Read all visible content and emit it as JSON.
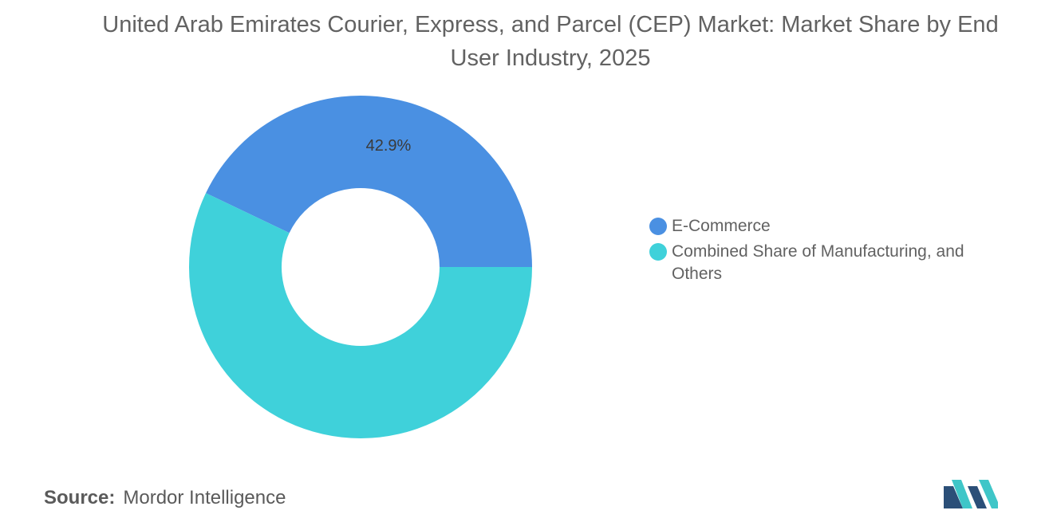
{
  "title": "United Arab Emirates Courier, Express, and Parcel (CEP) Market: Market Share by End User Industry, 2025",
  "chart_data": {
    "type": "pie",
    "style": "donut",
    "slices": [
      {
        "label": "E-Commerce",
        "value": 42.9,
        "color": "#4a90e2",
        "data_label": "42.9%"
      },
      {
        "label": "Combined Share of Manufacturing, and Others",
        "value": 57.1,
        "color": "#3fd1da",
        "data_label": ""
      }
    ],
    "legend_position": "right"
  },
  "source": {
    "label": "Source:",
    "value": "Mordor Intelligence"
  },
  "logo": {
    "icon": "mordor-intelligence-logo"
  }
}
